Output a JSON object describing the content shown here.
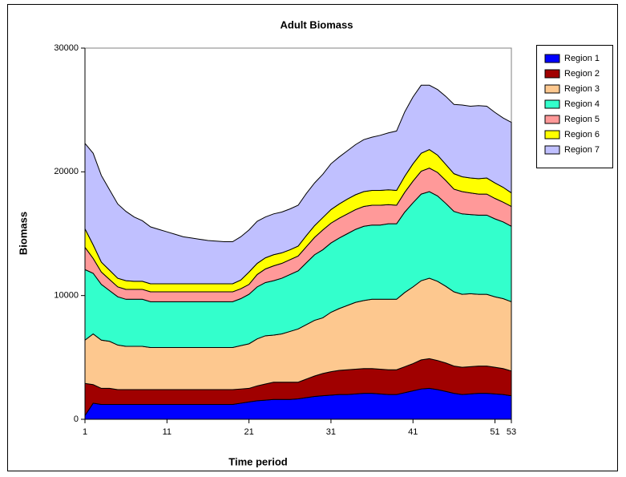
{
  "chart_data": {
    "type": "stacked_area",
    "title": "Adult Biomass",
    "x_label": "Time period",
    "y_label": "Biomass",
    "x": [
      1,
      2,
      3,
      4,
      5,
      6,
      7,
      8,
      9,
      10,
      11,
      12,
      13,
      14,
      15,
      16,
      17,
      18,
      19,
      20,
      21,
      22,
      23,
      24,
      25,
      26,
      27,
      28,
      29,
      30,
      31,
      32,
      33,
      34,
      35,
      36,
      37,
      38,
      39,
      40,
      41,
      42,
      43,
      44,
      45,
      46,
      47,
      48,
      49,
      50,
      51,
      52,
      53
    ],
    "xlim": [
      1,
      53
    ],
    "xticks": [
      1,
      11,
      21,
      31,
      41,
      51,
      53
    ],
    "ylim": [
      0,
      30000
    ],
    "yticks": [
      0,
      10000,
      20000,
      30000
    ],
    "legend_position": "right",
    "series": [
      {
        "name": "Region 1",
        "color": "#0000ff",
        "values": [
          300,
          1300,
          1200,
          1200,
          1200,
          1200,
          1200,
          1200,
          1200,
          1200,
          1200,
          1200,
          1200,
          1200,
          1200,
          1200,
          1200,
          1200,
          1200,
          1300,
          1400,
          1500,
          1550,
          1600,
          1600,
          1600,
          1650,
          1750,
          1850,
          1900,
          1950,
          2000,
          2000,
          2050,
          2100,
          2100,
          2050,
          2000,
          2000,
          2150,
          2300,
          2450,
          2500,
          2400,
          2250,
          2100,
          2000,
          2050,
          2100,
          2100,
          2050,
          2000,
          1900
        ]
      },
      {
        "name": "Region 2",
        "color": "#a00000",
        "values": [
          2600,
          1500,
          1300,
          1300,
          1200,
          1200,
          1200,
          1200,
          1200,
          1200,
          1200,
          1200,
          1200,
          1200,
          1200,
          1200,
          1200,
          1200,
          1200,
          1150,
          1100,
          1200,
          1300,
          1400,
          1400,
          1400,
          1350,
          1500,
          1650,
          1800,
          1900,
          1950,
          2000,
          2000,
          2000,
          2000,
          2000,
          2000,
          2000,
          2100,
          2200,
          2350,
          2400,
          2350,
          2300,
          2200,
          2200,
          2200,
          2200,
          2200,
          2150,
          2100,
          2000
        ]
      },
      {
        "name": "Region 3",
        "color": "#fdc88f",
        "values": [
          3500,
          4100,
          3900,
          3800,
          3600,
          3500,
          3500,
          3500,
          3400,
          3400,
          3400,
          3400,
          3400,
          3400,
          3400,
          3400,
          3400,
          3400,
          3400,
          3500,
          3600,
          3800,
          3900,
          3800,
          3900,
          4100,
          4300,
          4400,
          4500,
          4500,
          4800,
          5000,
          5200,
          5400,
          5500,
          5600,
          5650,
          5700,
          5700,
          6000,
          6200,
          6400,
          6500,
          6400,
          6200,
          6000,
          5900,
          5900,
          5800,
          5800,
          5700,
          5650,
          5600
        ]
      },
      {
        "name": "Region 4",
        "color": "#33ffcc",
        "values": [
          5700,
          4900,
          4500,
          4100,
          3900,
          3800,
          3800,
          3800,
          3700,
          3700,
          3700,
          3700,
          3700,
          3700,
          3700,
          3700,
          3700,
          3700,
          3700,
          3800,
          4000,
          4200,
          4300,
          4400,
          4500,
          4600,
          4700,
          5000,
          5300,
          5500,
          5600,
          5700,
          5800,
          5900,
          6000,
          6000,
          6000,
          6100,
          6100,
          6500,
          6800,
          7000,
          7000,
          6900,
          6700,
          6500,
          6500,
          6400,
          6400,
          6400,
          6300,
          6200,
          6100
        ]
      },
      {
        "name": "Region 5",
        "color": "#ff9999",
        "values": [
          1800,
          1200,
          1000,
          900,
          800,
          800,
          800,
          800,
          800,
          800,
          800,
          800,
          800,
          800,
          800,
          800,
          800,
          800,
          800,
          800,
          800,
          1000,
          1100,
          1200,
          1200,
          1200,
          1200,
          1300,
          1400,
          1600,
          1600,
          1600,
          1600,
          1600,
          1600,
          1600,
          1600,
          1550,
          1500,
          1600,
          1750,
          1850,
          1900,
          1900,
          1850,
          1800,
          1800,
          1750,
          1700,
          1700,
          1650,
          1600,
          1600
        ]
      },
      {
        "name": "Region 6",
        "color": "#ffff00",
        "values": [
          1500,
          1100,
          800,
          750,
          700,
          700,
          650,
          650,
          650,
          650,
          650,
          650,
          650,
          650,
          650,
          650,
          650,
          650,
          650,
          700,
          1000,
          900,
          900,
          900,
          850,
          800,
          800,
          900,
          950,
          1000,
          1100,
          1150,
          1200,
          1200,
          1200,
          1200,
          1200,
          1200,
          1200,
          1300,
          1400,
          1450,
          1500,
          1400,
          1300,
          1250,
          1200,
          1200,
          1250,
          1300,
          1250,
          1200,
          1100
        ]
      },
      {
        "name": "Region 7",
        "color": "#c0c0ff",
        "values": [
          6900,
          7400,
          7000,
          6500,
          6000,
          5600,
          5200,
          4900,
          4600,
          4400,
          4200,
          4000,
          3800,
          3700,
          3600,
          3500,
          3450,
          3400,
          3400,
          3500,
          3400,
          3400,
          3300,
          3300,
          3300,
          3300,
          3300,
          3400,
          3450,
          3500,
          3700,
          3800,
          3900,
          4050,
          4200,
          4300,
          4450,
          4600,
          4800,
          5200,
          5400,
          5500,
          5200,
          5300,
          5500,
          5600,
          5800,
          5800,
          5900,
          5800,
          5700,
          5600,
          5700
        ]
      }
    ]
  }
}
